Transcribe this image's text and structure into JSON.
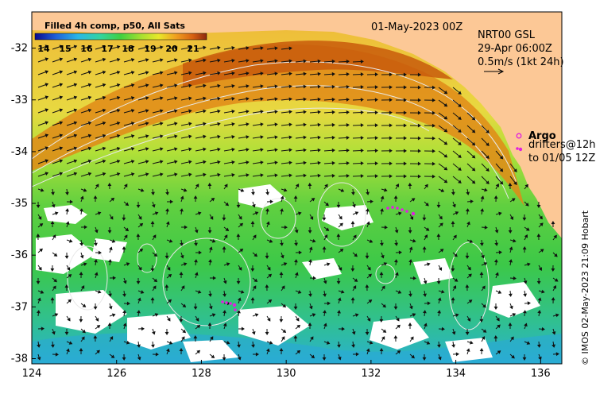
{
  "colorbar": {
    "title": "Filled 4h comp, p50, All Sats",
    "ticks": [
      "14",
      "15",
      "16",
      "17",
      "18",
      "19",
      "20",
      "21"
    ],
    "colors": [
      "#0a0a8c",
      "#1e5fd8",
      "#2ab6e8",
      "#34d4a0",
      "#40d040",
      "#a8e030",
      "#e8e82a",
      "#f0a020",
      "#d66010",
      "#8c2a10"
    ]
  },
  "header": {
    "date": "01-May-2023 00Z",
    "product": "NRT00 GSL",
    "time": "29-Apr 06:00Z",
    "scale_label": "0.5m/s (1kt 24h)"
  },
  "legend": {
    "argo": "Argo",
    "drifters_line1": "drifters@12h",
    "drifters_line2": "to 01/05 12Z"
  },
  "credit": "© IMOS 02-May-2023 21:09 Hobart",
  "axes": {
    "x_ticks": [
      "124",
      "126",
      "128",
      "130",
      "132",
      "134",
      "136"
    ],
    "y_ticks": [
      "-32",
      "-33",
      "-34",
      "-35",
      "-36",
      "-37",
      "-38"
    ],
    "x_range": [
      124,
      136.5
    ],
    "y_range": [
      -38.1,
      -31.3
    ]
  },
  "colors": {
    "land": "#fcc896",
    "warm": "#d86e0c",
    "mid": "#f0b030",
    "cool": "#3cc848",
    "cold": "#22b8d8",
    "drifter": "#e020e0"
  }
}
